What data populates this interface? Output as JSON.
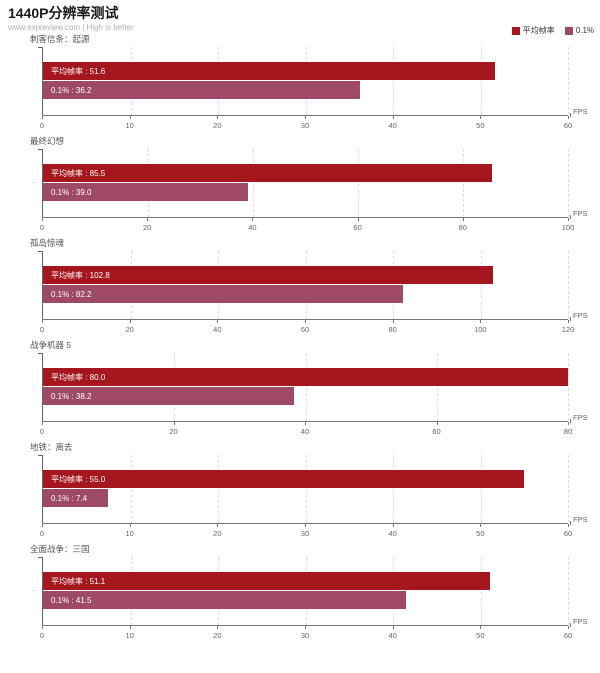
{
  "header": {
    "title": "1440P分辨率测试",
    "subtitle": "www.expreview.com | High is better"
  },
  "legend": [
    {
      "label": "平均帧率",
      "color": "#a6161e"
    },
    {
      "label": "0.1%",
      "color": "#9e4a66"
    }
  ],
  "colors": {
    "avg_bar": "#a6161e",
    "low_bar": "#9e4a66",
    "axis": "#777777",
    "gridline": "#dddddd"
  },
  "chart_data": [
    {
      "type": "bar",
      "orientation": "horizontal",
      "title": "刺客信条：起源",
      "categories": [
        "平均帧率",
        "0.1%"
      ],
      "values": [
        51.6,
        36.2
      ],
      "labels": [
        "平均帧率 : 51.6",
        "0.1% : 36.2"
      ],
      "xlim": [
        0,
        60
      ],
      "ticks": [
        0,
        10,
        20,
        30,
        40,
        50,
        60
      ],
      "xlabel": "FPS"
    },
    {
      "type": "bar",
      "orientation": "horizontal",
      "title": "最终幻想",
      "categories": [
        "平均帧率",
        "0.1%"
      ],
      "values": [
        85.5,
        39.0
      ],
      "labels": [
        "平均帧率 : 85.5",
        "0.1% : 39.0"
      ],
      "xlim": [
        0,
        100
      ],
      "ticks": [
        0,
        20,
        40,
        60,
        80,
        100
      ],
      "xlabel": "FPS"
    },
    {
      "type": "bar",
      "orientation": "horizontal",
      "title": "孤岛惊魂",
      "categories": [
        "平均帧率",
        "0.1%"
      ],
      "values": [
        102.8,
        82.2
      ],
      "labels": [
        "平均帧率 : 102.8",
        "0.1% : 82.2"
      ],
      "xlim": [
        0,
        120
      ],
      "ticks": [
        0,
        20,
        40,
        60,
        80,
        100,
        120
      ],
      "xlabel": "FPS"
    },
    {
      "type": "bar",
      "orientation": "horizontal",
      "title": "战争机器 5",
      "categories": [
        "平均帧率",
        "0.1%"
      ],
      "values": [
        80.0,
        38.2
      ],
      "labels": [
        "平均帧率 : 80.0",
        "0.1% : 38.2"
      ],
      "xlim": [
        0,
        80
      ],
      "ticks": [
        0,
        20,
        40,
        60,
        80
      ],
      "xlabel": "FPS"
    },
    {
      "type": "bar",
      "orientation": "horizontal",
      "title": "地铁：离去",
      "categories": [
        "平均帧率",
        "0.1%"
      ],
      "values": [
        55.0,
        7.4
      ],
      "labels": [
        "平均帧率 : 55.0",
        "0.1% : 7.4"
      ],
      "xlim": [
        0,
        60
      ],
      "ticks": [
        0,
        10,
        20,
        30,
        40,
        50,
        60
      ],
      "xlabel": "FPS"
    },
    {
      "type": "bar",
      "orientation": "horizontal",
      "title": "全面战争：三国",
      "categories": [
        "平均帧率",
        "0.1%"
      ],
      "values": [
        51.1,
        41.5
      ],
      "labels": [
        "平均帧率 : 51.1",
        "0.1% : 41.5"
      ],
      "xlim": [
        0,
        60
      ],
      "ticks": [
        0,
        10,
        20,
        30,
        40,
        50,
        60
      ],
      "xlabel": "FPS"
    }
  ]
}
